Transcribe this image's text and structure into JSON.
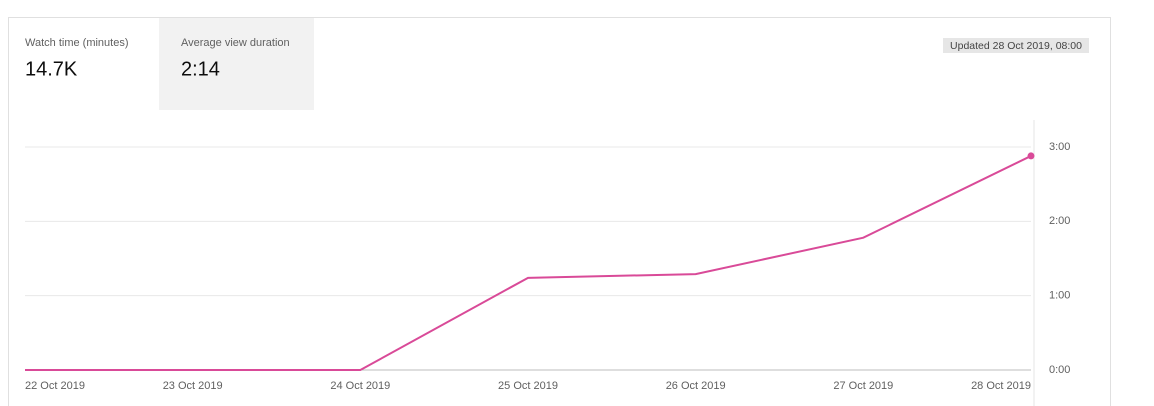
{
  "tabs": [
    {
      "label": "Watch time (minutes)",
      "value": "14.7K"
    },
    {
      "label": "Average view duration",
      "value": "2:14"
    }
  ],
  "updated": "Updated 28 Oct 2019, 08:00",
  "chart_data": {
    "type": "line",
    "categories": [
      "22 Oct 2019",
      "23 Oct 2019",
      "24 Oct 2019",
      "25 Oct 2019",
      "26 Oct 2019",
      "27 Oct 2019",
      "28 Oct 2019"
    ],
    "values": [
      0,
      0,
      0,
      1.24,
      1.29,
      1.78,
      2.88
    ],
    "color": "#d94a98",
    "ylim": [
      0,
      3
    ],
    "yticks": [
      {
        "value": 0,
        "label": "0:00"
      },
      {
        "value": 1,
        "label": "1:00"
      },
      {
        "value": 2,
        "label": "2:00"
      },
      {
        "value": 3,
        "label": "3:00"
      }
    ],
    "grid": true
  }
}
